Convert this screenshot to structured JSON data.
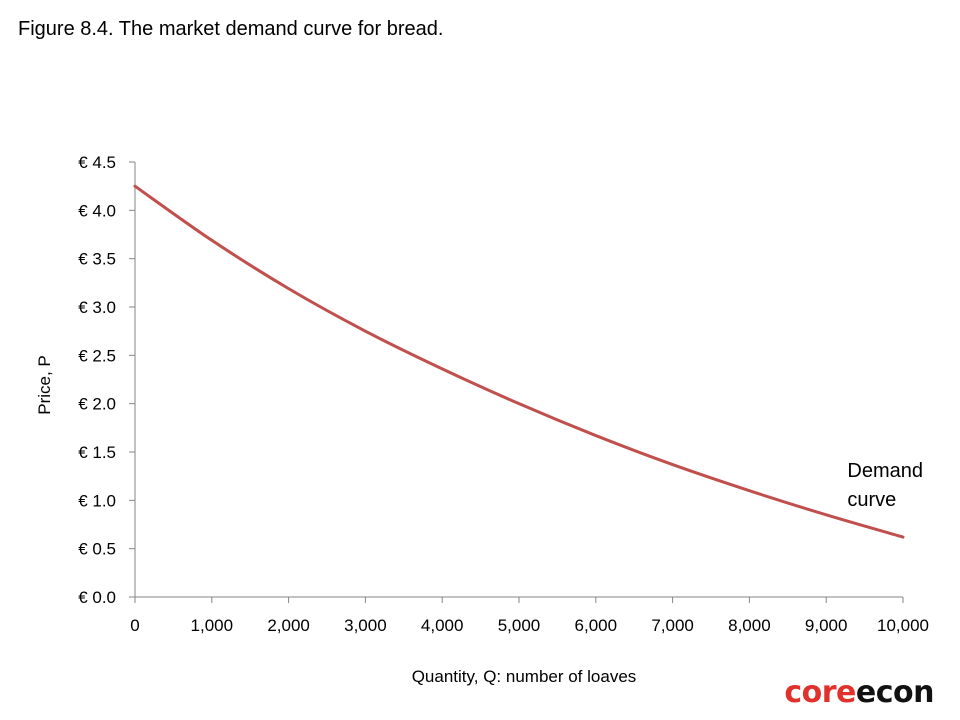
{
  "figure_title": "Figure 8.4. The market demand curve for bread.",
  "logo": {
    "part1": "core",
    "part2": "econ"
  },
  "colors": {
    "curve": "#c0504d",
    "axis": "#868686",
    "logo_core": "#e0312b",
    "logo_econ": "#111111"
  },
  "chart_data": {
    "type": "line",
    "title": "",
    "xlabel": "Quantity, Q: number of loaves",
    "ylabel": "Price, P",
    "xlim": [
      0,
      10000
    ],
    "ylim": [
      0,
      4.5
    ],
    "x_ticks": [
      0,
      1000,
      2000,
      3000,
      4000,
      5000,
      6000,
      7000,
      8000,
      9000,
      10000
    ],
    "x_tick_labels": [
      "0",
      "1,000",
      "2,000",
      "3,000",
      "4,000",
      "5,000",
      "6,000",
      "7,000",
      "8,000",
      "9,000",
      "10,000"
    ],
    "y_ticks": [
      0,
      0.5,
      1.0,
      1.5,
      2.0,
      2.5,
      3.0,
      3.5,
      4.0,
      4.5
    ],
    "y_tick_labels": [
      "€ 0.0",
      "€ 0.5",
      "€ 1.0",
      "€ 1.5",
      "€ 2.0",
      "€ 2.5",
      "€ 3.0",
      "€ 3.5",
      "€ 4.0",
      "€ 4.5"
    ],
    "grid": false,
    "series": [
      {
        "name": "",
        "x": [
          0,
          1000,
          2000,
          3000,
          4000,
          5000,
          6000,
          7000,
          8000,
          9000,
          10000
        ],
        "y": [
          4.25,
          3.69,
          3.19,
          2.75,
          2.36,
          2.0,
          1.67,
          1.37,
          1.1,
          0.85,
          0.62
        ]
      }
    ],
    "annotations": [
      {
        "text_lines": [
          "Demand",
          "curve"
        ],
        "x": 9250,
        "y": 1.2
      }
    ]
  }
}
